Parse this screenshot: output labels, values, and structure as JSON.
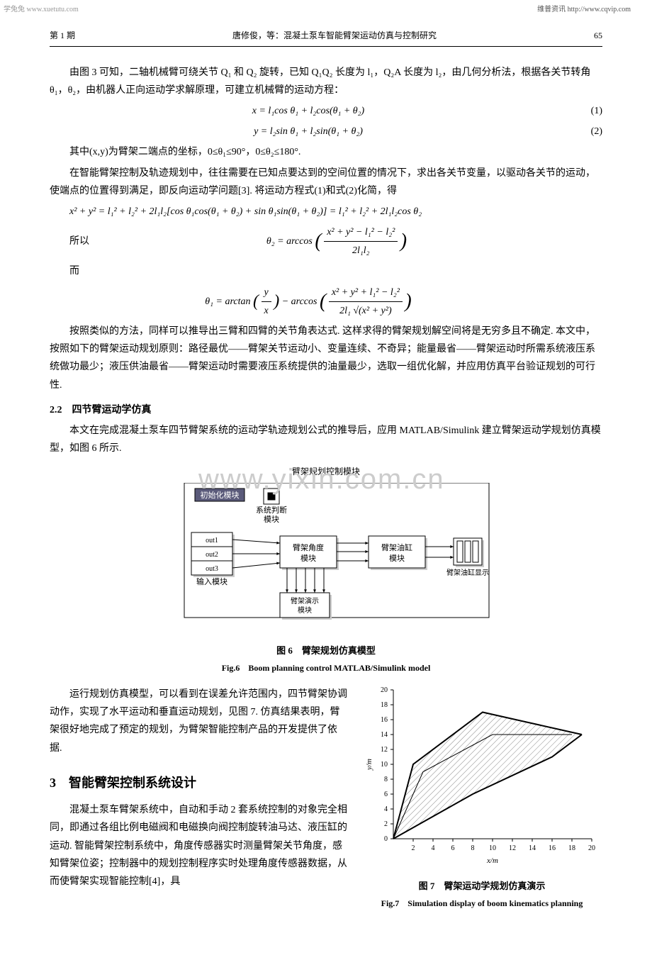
{
  "watermarks": {
    "top_left": "学兔兔 www.xuetutu.com",
    "top_right": "维普资讯 http://www.cqvip.com",
    "center": "www.yixin.com.cn"
  },
  "header": {
    "issue": "第 1 期",
    "running_title": "唐修俊，等：混凝土泵车智能臂架运动仿真与控制研究",
    "page_number": "65"
  },
  "paragraphs": {
    "p1": "由图 3 可知，二轴机械臂可绕关节 Q₁ 和 Q₂ 旋转，已知 Q₁Q₂ 长度为 l₁，Q₂A 长度为 l₂，由几何分析法，根据各关节转角 θ₁，θ₂，由机器人正向运动学求解原理，可建立机械臂的运动方程：",
    "eq1": "x = l₁cos θ₁ + l₂cos(θ₁ + θ₂)",
    "eq1_num": "(1)",
    "eq2": "y = l₂sin θ₁ + l₂sin(θ₁ + θ₂)",
    "eq2_num": "(2)",
    "p2": "其中(x,y)为臂架二端点的坐标，0≤θ₁≤90°，0≤θ₂≤180°.",
    "p3": "在智能臂架控制及轨迹规划中，往往需要在已知点要达到的空间位置的情况下，求出各关节变量，以驱动各关节的运动，使端点的位置得到满足，即反向运动学问题[3]. 将运动方程式(1)和式(2)化简，得",
    "eq3": "x² + y² = l₁² + l₂² + 2l₁l₂[cos θ₁cos(θ₁ + θ₂) + sin θ₁sin(θ₁ + θ₂)] = l₁² + l₂² + 2l₁l₂cos θ₂",
    "label_so": "所以",
    "eq4_lhs": "θ₂ = arccos",
    "eq4_num": "x² + y² − l₁² − l₂²",
    "eq4_den": "2l₁l₂",
    "label_and": "而",
    "eq5_lhs": "θ₁ = arctan",
    "eq5_frac1_num": "y",
    "eq5_frac1_den": "x",
    "eq5_mid": " − arccos",
    "eq5_frac2_num": "x² + y² + l₁² − l₂²",
    "eq5_frac2_den": "2l₁ √(x² + y²)",
    "p4": "按照类似的方法，同样可以推导出三臂和四臂的关节角表达式. 这样求得的臂架规划解空间将是无穷多且不确定. 本文中，按照如下的臂架运动规划原则：路径最优——臂架关节运动小、变量连续、不奇异；能量最省——臂架运动时所需系统液压系统做功最少；液压供油最省——臂架运动时需要液压系统提供的油量最少，选取一组优化解，并应用仿真平台验证规划的可行性.",
    "h22": "2.2　四节臂运动学仿真",
    "p5": "本文在完成混凝土泵车四节臂架系统的运动学轨迹规划公式的推导后，应用 MATLAB/Simulink 建立臂架运动学规划仿真模型，如图 6 所示.",
    "fig6_toplabel": "臂架规划控制模块",
    "p6": "运行规划仿真模型，可以看到在误差允许范围内，四节臂架协调动作，实现了水平运动和垂直运动规划，见图 7. 仿真结果表明，臂架很好地完成了预定的规划，为臂架智能控制产品的开发提供了依据.",
    "h3": "3　智能臂架控制系统设计",
    "p7": "混凝土泵车臂架系统中，自动和手动 2 套系统控制的对象完全相同，即通过各组比例电磁阀和电磁换向阀控制旋转油马达、液压缸的运动. 智能臂架控制系统中，角度传感器实时测量臂架关节角度，感知臂架位姿；控制器中的规划控制程序实时处理角度传感器数据，从而使臂架实现智能控制[4]，具"
  },
  "fig6": {
    "caption_cn": "图 6　臂架规划仿真模型",
    "caption_en": "Fig.6　Boom planning control MATLAB/Simulink model",
    "block_init": "初始化模块",
    "block_judge_l1": "系统判断",
    "block_judge_l2": "模块",
    "block_out1": "out1",
    "block_out2": "out2",
    "block_out3": "out3",
    "block_input": "输入模块",
    "block_angle_l1": "臂架角度",
    "block_angle_l2": "模块",
    "block_cyl_l1": "臂架油缸",
    "block_cyl_l2": "模块",
    "block_show": "臂架油缸显示",
    "block_demo_l1": "臂架演示",
    "block_demo_l2": "模块",
    "colors": {
      "stroke": "#000000",
      "fill": "#ffffff",
      "shadow": "#cccccc",
      "init_fill": "#5a5a7a",
      "init_text": "#ffffff"
    }
  },
  "fig7": {
    "caption_cn": "图 7　臂架运动学规划仿真演示",
    "caption_en": "Fig.7　Simulation display of boom kinematics planning",
    "xlabel": "x/m",
    "ylabel": "y/m",
    "xlim": [
      0,
      20
    ],
    "ylim": [
      0,
      20
    ],
    "xticks": [
      2,
      4,
      6,
      8,
      10,
      12,
      14,
      16,
      18,
      20
    ],
    "yticks": [
      0,
      2,
      4,
      6,
      8,
      10,
      12,
      14,
      16,
      18,
      20
    ],
    "poly1": [
      [
        0,
        0
      ],
      [
        2,
        10
      ],
      [
        9,
        17
      ],
      [
        19,
        14
      ]
    ],
    "poly2": [
      [
        0,
        0
      ],
      [
        8,
        6
      ],
      [
        16,
        11
      ],
      [
        19,
        14
      ]
    ],
    "poly3": [
      [
        0,
        0
      ],
      [
        3,
        9
      ],
      [
        10,
        14
      ],
      [
        18,
        14
      ]
    ],
    "hatch_color": "#888888",
    "axis_color": "#000000"
  }
}
